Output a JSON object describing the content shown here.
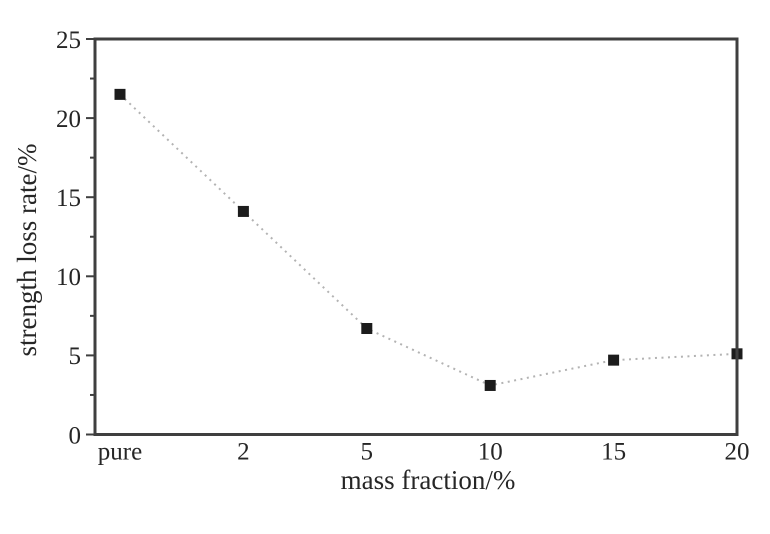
{
  "figure": {
    "background": "#ffffff"
  },
  "chart_data": {
    "type": "line",
    "categories": [
      "pure",
      "2",
      "5",
      "10",
      "15",
      "20"
    ],
    "series": [
      {
        "name": "strength loss rate",
        "values": [
          21.5,
          14.1,
          6.7,
          3.1,
          4.7,
          5.1
        ],
        "marker": "square",
        "marker_color": "#1c1c1c",
        "line_style": "dotted",
        "line_color": "#b3b3b3"
      }
    ],
    "title": "",
    "xlabel": "mass fraction/%",
    "ylabel": "strength loss rate/%",
    "ylim": [
      0,
      25
    ],
    "y_major_ticks": [
      0,
      5,
      10,
      15,
      20,
      25
    ],
    "y_minor_step": 2.5,
    "x_tick_marks": false,
    "grid": false,
    "legend_position": "none",
    "axis_color": "#3f3f3f",
    "text_color": "#262626"
  }
}
